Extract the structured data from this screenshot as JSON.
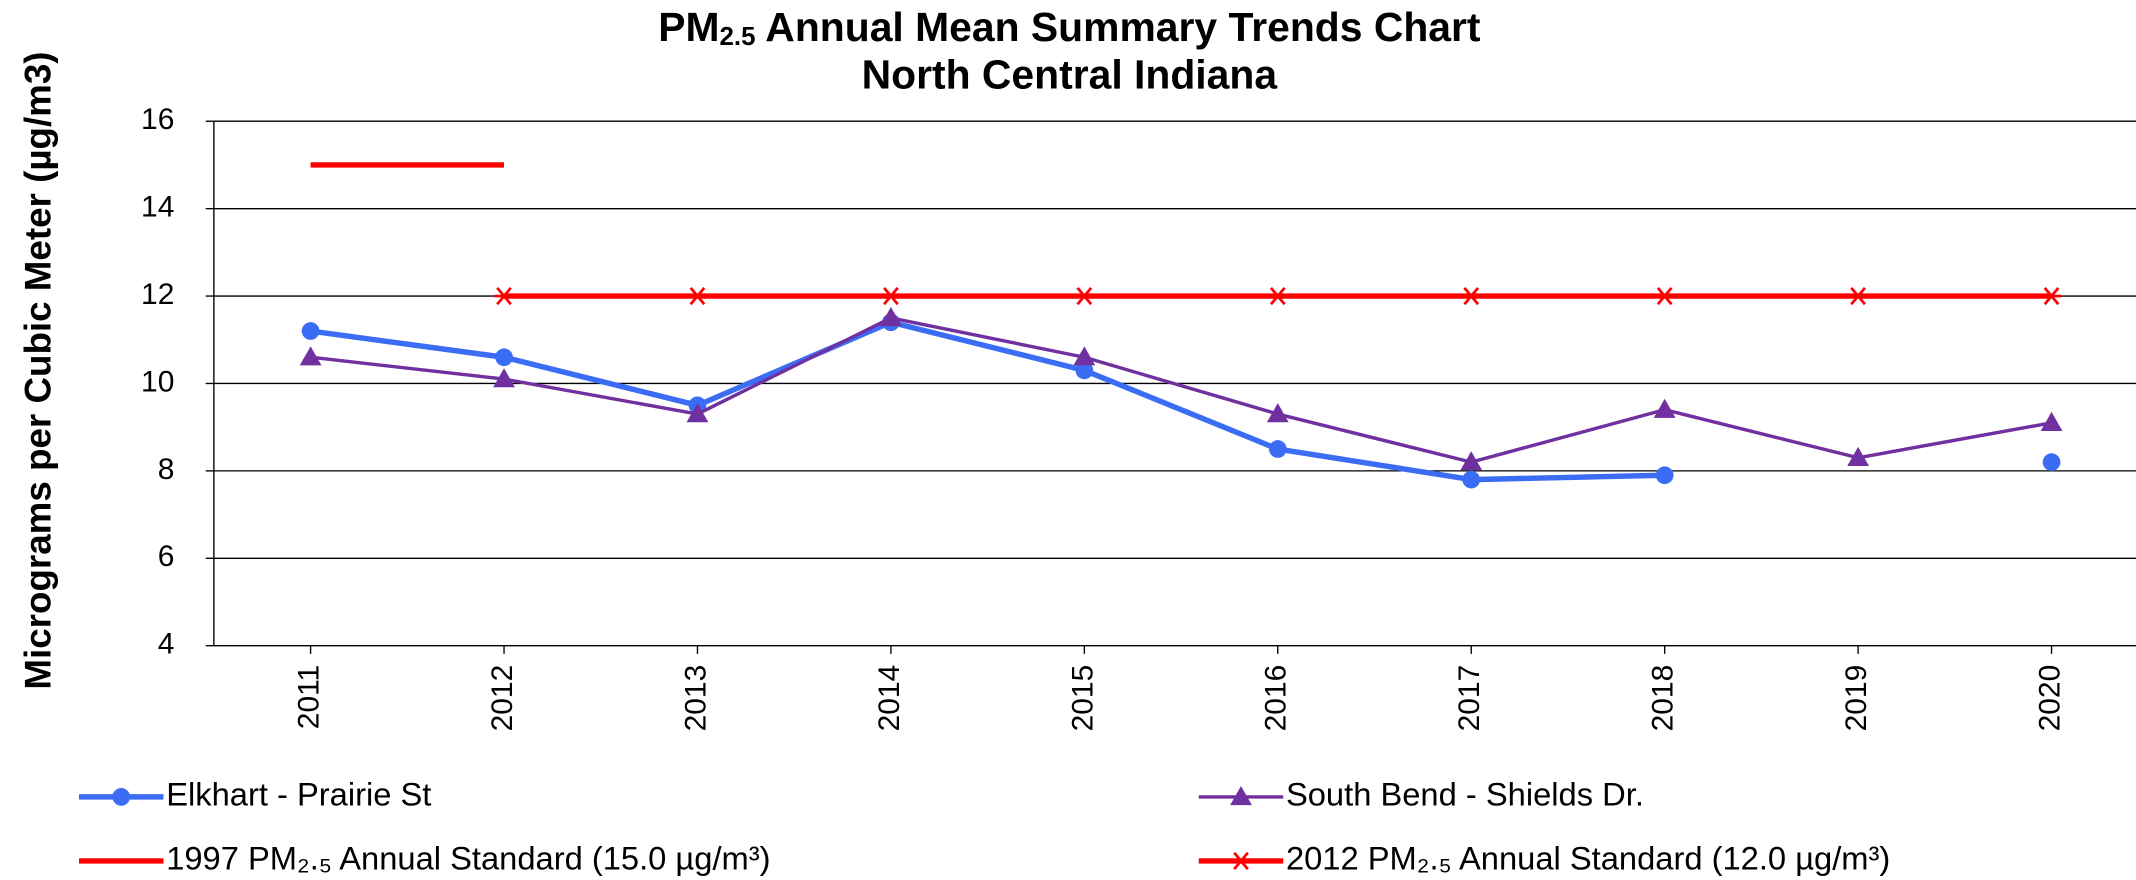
{
  "chart_data": {
    "type": "line",
    "title": [
      "PM",
      "2.5",
      " Annual Mean Summary Trends Chart"
    ],
    "subtitle": "North Central Indiana",
    "y_label": "Micrograms per Cubic Meter (µg/m3)",
    "categories": [
      "2011",
      "2012",
      "2013",
      "2014",
      "2015",
      "2016",
      "2017",
      "2018",
      "2019",
      "2020"
    ],
    "series": [
      {
        "name": "Elkhart - Prairie St",
        "color": "#3a6cf4",
        "marker": "circle",
        "values": [
          11.2,
          10.6,
          9.5,
          11.4,
          10.3,
          8.5,
          7.8,
          7.9,
          null,
          8.2
        ]
      },
      {
        "name": "South Bend - Shields Dr.",
        "color": "#7030a0",
        "marker": "triangle",
        "values": [
          10.6,
          10.1,
          9.3,
          11.5,
          10.6,
          9.3,
          8.2,
          9.4,
          8.3,
          9.1
        ]
      },
      {
        "name": "1997 PM₂.₅ Annual Standard (15.0 µg/m³)",
        "color": "#ff0000",
        "marker": "none",
        "values": [
          15,
          15,
          null,
          null,
          null,
          null,
          null,
          null,
          null,
          null
        ]
      },
      {
        "name": "2012 PM₂.₅ Annual Standard (12.0 µg/m³)",
        "color": "#ff0000",
        "marker": "asterisk",
        "values": [
          null,
          12,
          12,
          12,
          12,
          12,
          12,
          12,
          12,
          12
        ]
      }
    ],
    "ylim": [
      4,
      16
    ],
    "yticks": [
      4,
      6,
      8,
      10,
      12,
      14,
      16
    ],
    "grid": true
  }
}
